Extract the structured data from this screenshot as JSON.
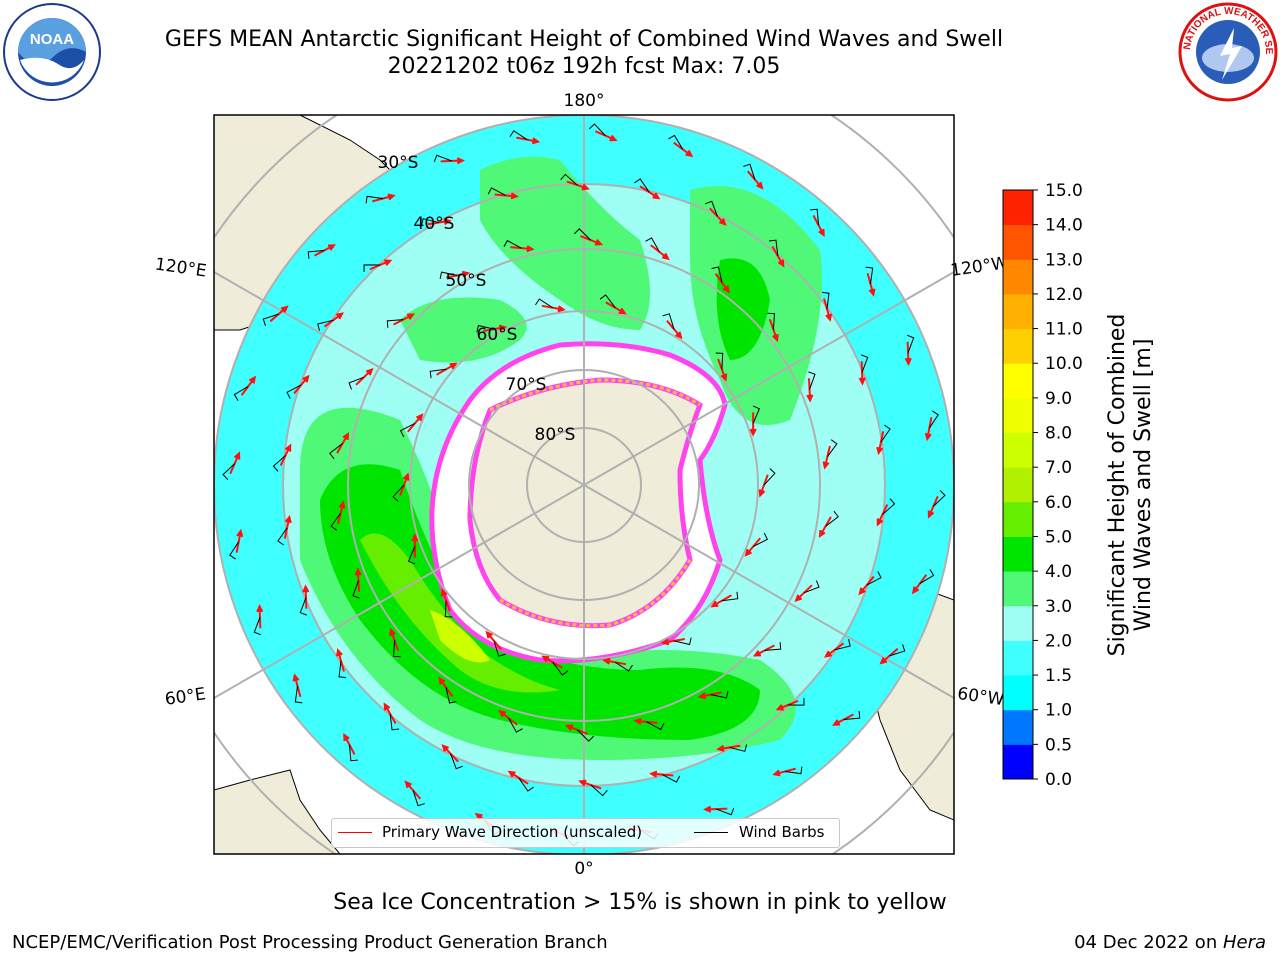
{
  "title": {
    "line1": "GEFS MEAN Antarctic Significant Height of Combined Wind Waves and Swell",
    "line2": "20221202 t06z 192h fcst   Max: 7.05"
  },
  "logos": {
    "left": {
      "icon": "noaa-logo",
      "text": "NOAA"
    },
    "right": {
      "icon": "nws-logo",
      "text": "NATIONAL WEATHER SERVICE"
    }
  },
  "map": {
    "projection": "south-polar-stereographic",
    "lon_labels": {
      "top": "180°",
      "bottom": "0°",
      "left_upper": "120°E",
      "left_lower": "60°E",
      "right_upper": "120°W",
      "right_lower": "60°W"
    },
    "lat_labels": [
      "30°S",
      "40°S",
      "50°S",
      "60°S",
      "70°S",
      "80°S"
    ],
    "colors": {
      "ocean_low": "#40ffff",
      "ocean_mid": "#a0fff4",
      "swell_3_4": "#50f878",
      "swell_4_5": "#00e500",
      "swell_5_6": "#66ee00",
      "swell_6_7": "#ccff00",
      "land": "#efecd9",
      "ice": "#ffffff",
      "ice_edge": "#ff44ee",
      "ice_yellow": "#ffbb44",
      "arrow": "#ff1111",
      "barb": "#000000",
      "grid": "#b0b0b0"
    }
  },
  "legend": {
    "items": [
      {
        "label": "Primary Wave Direction (unscaled)",
        "color": "#ff0000"
      },
      {
        "label": "Wind Barbs",
        "color": "#000000"
      }
    ]
  },
  "colorbar": {
    "label_line1": "Significant Height of Combined",
    "label_line2": "Wind Waves and Swell [m]",
    "ticks": [
      "0.0",
      "0.5",
      "1.0",
      "1.5",
      "2.0",
      "3.0",
      "4.0",
      "5.0",
      "6.0",
      "7.0",
      "8.0",
      "9.0",
      "10.0",
      "11.0",
      "12.0",
      "13.0",
      "14.0",
      "15.0"
    ],
    "colors": [
      "#0000ff",
      "#0077ff",
      "#00ffff",
      "#40ffff",
      "#a0fff4",
      "#50f878",
      "#00e500",
      "#66ee00",
      "#b0f000",
      "#ccff00",
      "#eeff00",
      "#ffff00",
      "#ffd000",
      "#ffb000",
      "#ff8800",
      "#ff5500",
      "#ff2200",
      "#ff0000"
    ]
  },
  "ice_note": "Sea Ice Concentration > 15% is shown in pink to yellow",
  "footer": {
    "left": "NCEP/EMC/Verification Post Processing Product Generation Branch",
    "right_date": "04 Dec 2022 on ",
    "right_host": "Hera"
  }
}
